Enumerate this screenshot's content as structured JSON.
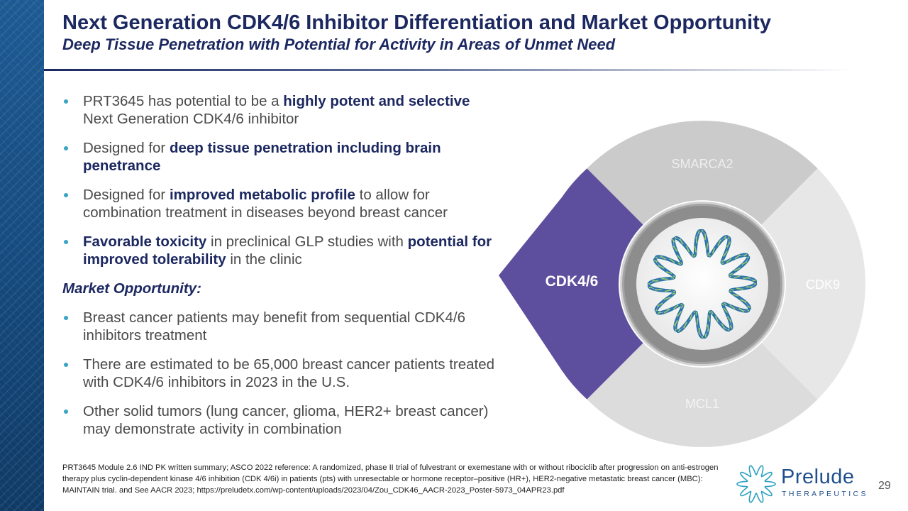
{
  "header": {
    "title": "Next Generation CDK4/6 Inhibitor Differentiation and Market Opportunity",
    "subtitle": "Deep Tissue Penetration with Potential for Activity in Areas of Unmet Need"
  },
  "bullets": [
    {
      "pre": "PRT3645 has potential to be a ",
      "b1": "highly potent and selective",
      "mid": " Next Generation CDK4/6 inhibitor",
      "b2": "",
      "post": ""
    },
    {
      "pre": "Designed for ",
      "b1": "deep tissue penetration including brain penetrance",
      "mid": "",
      "b2": "",
      "post": ""
    },
    {
      "pre": "Designed for ",
      "b1": "improved metabolic profile",
      "mid": " to allow for combination treatment in diseases beyond breast cancer",
      "b2": "",
      "post": ""
    },
    {
      "pre": "",
      "b1": "Favorable toxicity",
      "mid": " in preclinical GLP studies with ",
      "b2": "potential for improved tolerability",
      "post": " in the clinic"
    }
  ],
  "market": {
    "heading": "Market Opportunity:",
    "bullets": [
      "Breast cancer patients may benefit from sequential CDK4/6 inhibitors treatment",
      "There are estimated to be 65,000 breast cancer patients treated with CDK4/6 inhibitors in 2023 in the U.S.",
      "Other solid tumors (lung cancer, glioma, HER2+ breast cancer) may demonstrate activity in combination"
    ]
  },
  "diagram": {
    "segments": {
      "top": "SMARCA2",
      "right": "CDK9",
      "bottom": "MCL1",
      "left": "CDK4/6"
    },
    "colors": {
      "highlight": "#5e4f9e",
      "top": "#cbcbcb",
      "right": "#e7e7e7",
      "bottom": "#dcdcdc",
      "ring": "#8d8d8d",
      "center": "#f2f2f2",
      "helix": "#2d74a8"
    }
  },
  "footnote": "PRT3645 Module 2.6 IND PK written summary; ASCO 2022 reference:  A randomized, phase II trial of fulvestrant or exemestane with or without ribociclib after progression on anti-estrogen therapy plus cyclin-dependent kinase 4/6 inhibition (CDK 4/6i) in patients (pts) with unresectable or hormone receptor–positive (HR+), HER2-negative metastatic breast cancer (MBC): MAINTAIN trial. and See AACR 2023; https://preludetx.com/wp-content/uploads/2023/04/Zou_CDK46_AACR-2023_Poster-5973_04APR23.pdf",
  "logo": {
    "name": "Prelude",
    "sub": "THERAPEUTICS"
  },
  "page_number": "29"
}
